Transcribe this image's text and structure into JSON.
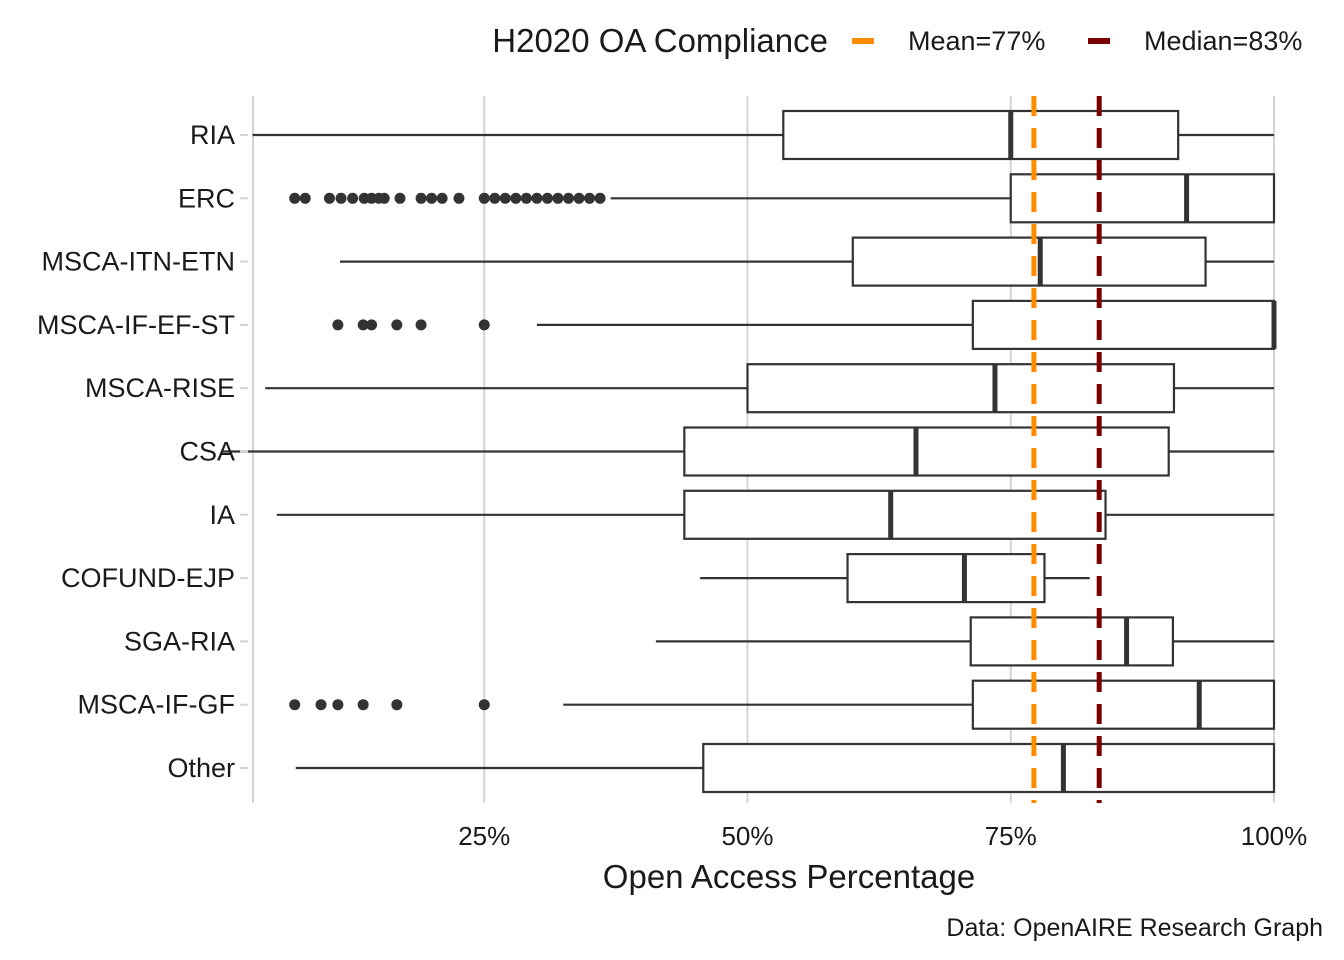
{
  "chart_data": {
    "type": "boxplot",
    "orientation": "horizontal",
    "title": "H2020 OA Compliance",
    "xlabel": "Open Access Percentage",
    "ylabel": "",
    "caption": "Data: OpenAIRE Research Graph",
    "xlim": [
      0.0,
      1.0
    ],
    "x_ticks": [
      {
        "value": 0.25,
        "label": "25%"
      },
      {
        "value": 0.5,
        "label": "50%"
      },
      {
        "value": 0.75,
        "label": "75%"
      },
      {
        "value": 1.0,
        "label": "100%"
      }
    ],
    "grid": "vertical-major",
    "legend": {
      "position": "top",
      "entries": [
        {
          "label": "Mean=77%",
          "value": 0.772,
          "color": "#FF8C00",
          "style": "dashed"
        },
        {
          "label": "Median=83%",
          "value": 0.834,
          "color": "#7A0000",
          "style": "dashed"
        }
      ]
    },
    "categories": [
      "RIA",
      "ERC",
      "MSCA-ITN-ETN",
      "MSCA-IF-EF-ST",
      "MSCA-RISE",
      "CSA",
      "IA",
      "COFUND-EJP",
      "SGA-RIA",
      "MSCA-IF-GF",
      "Other"
    ],
    "boxes": [
      {
        "label": "RIA",
        "whisker_low": 0.03,
        "q1": 0.534,
        "median": 0.75,
        "q3": 0.909,
        "whisker_high": 1.0,
        "outliers": []
      },
      {
        "label": "ERC",
        "whisker_low": 0.37,
        "q1": 0.75,
        "median": 0.917,
        "q3": 1.0,
        "whisker_high": 1.0,
        "outliers": [
          0.07,
          0.08,
          0.103,
          0.114,
          0.125,
          0.136,
          0.143,
          0.15,
          0.155,
          0.17,
          0.19,
          0.2,
          0.21,
          0.226,
          0.25,
          0.26,
          0.27,
          0.28,
          0.29,
          0.3,
          0.31,
          0.32,
          0.33,
          0.34,
          0.35,
          0.36
        ]
      },
      {
        "label": "MSCA-ITN-ETN",
        "whisker_low": 0.113,
        "q1": 0.6,
        "median": 0.778,
        "q3": 0.935,
        "whisker_high": 1.0,
        "outliers": []
      },
      {
        "label": "MSCA-IF-EF-ST",
        "whisker_low": 0.3,
        "q1": 0.714,
        "median": 1.0,
        "q3": 1.0,
        "whisker_high": 1.0,
        "outliers": [
          0.111,
          0.135,
          0.143,
          0.167,
          0.19,
          0.25
        ]
      },
      {
        "label": "MSCA-RISE",
        "whisker_low": 0.042,
        "q1": 0.5,
        "median": 0.735,
        "q3": 0.905,
        "whisker_high": 1.0,
        "outliers": []
      },
      {
        "label": "CSA",
        "whisker_low": 0.0,
        "q1": 0.44,
        "median": 0.66,
        "q3": 0.9,
        "whisker_high": 1.0,
        "outliers": []
      },
      {
        "label": "IA",
        "whisker_low": 0.053,
        "q1": 0.44,
        "median": 0.636,
        "q3": 0.84,
        "whisker_high": 1.0,
        "outliers": []
      },
      {
        "label": "COFUND-EJP",
        "whisker_low": 0.455,
        "q1": 0.595,
        "median": 0.706,
        "q3": 0.782,
        "whisker_high": 0.825,
        "outliers": []
      },
      {
        "label": "SGA-RIA",
        "whisker_low": 0.413,
        "q1": 0.712,
        "median": 0.86,
        "q3": 0.904,
        "whisker_high": 1.0,
        "outliers": []
      },
      {
        "label": "MSCA-IF-GF",
        "whisker_low": 0.325,
        "q1": 0.714,
        "median": 0.929,
        "q3": 1.0,
        "whisker_high": 1.0,
        "outliers": [
          0.07,
          0.095,
          0.111,
          0.135,
          0.167,
          0.25
        ]
      },
      {
        "label": "Other",
        "whisker_low": 0.071,
        "q1": 0.458,
        "median": 0.8,
        "q3": 1.0,
        "whisker_high": 1.0,
        "outliers": []
      }
    ]
  }
}
